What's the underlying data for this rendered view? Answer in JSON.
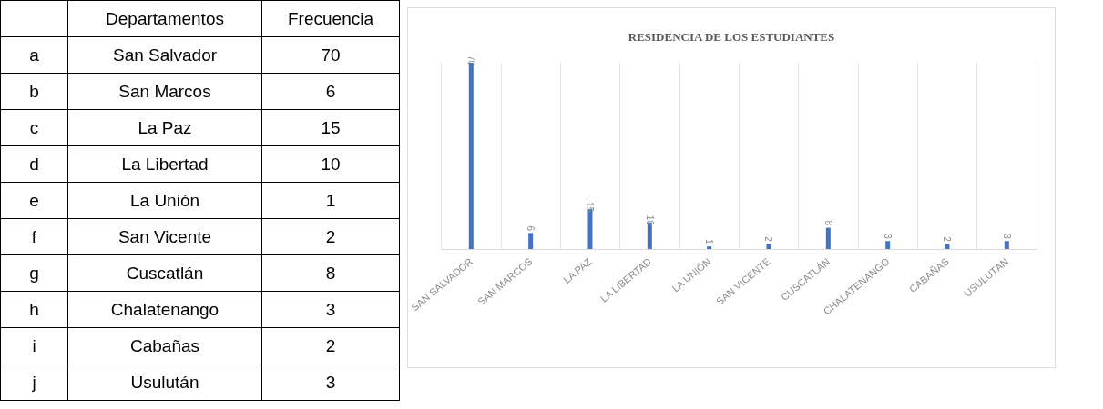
{
  "chart_data": [
    {
      "type": "other",
      "annotations": [
        "Departamentos",
        "Frecuencia",
        "a",
        "b",
        "c",
        "d",
        "e",
        "f",
        "g",
        "h",
        "i",
        "j"
      ],
      "categories": [
        "San Salvador",
        "San Marcos",
        "La Paz",
        "La Libertad",
        "La Unión",
        "San Vicente",
        "Cuscatlán",
        "Chalatenango",
        "Cabañas",
        "Usulután"
      ],
      "values": [
        70,
        6,
        15,
        10,
        1,
        2,
        8,
        3,
        2,
        3
      ],
      "data_labels": true
    },
    {
      "type": "bar",
      "title": "RESIDENCIA DE LOS ESTUDIANTES",
      "categories": [
        "SAN SALVADOR",
        "SAN MARCOS",
        "LA PAZ",
        "LA LIBERTAD",
        "LA UNIÓN",
        "SAN VICENTE",
        "CUSCATLÁN",
        "CHALATENANGO",
        "CABAÑAS",
        "USULUTÁN"
      ],
      "values": [
        70,
        6,
        15,
        10,
        1,
        2,
        8,
        3,
        2,
        3
      ],
      "color": "#4472c4",
      "data_labels": true,
      "grid": "x"
    }
  ]
}
